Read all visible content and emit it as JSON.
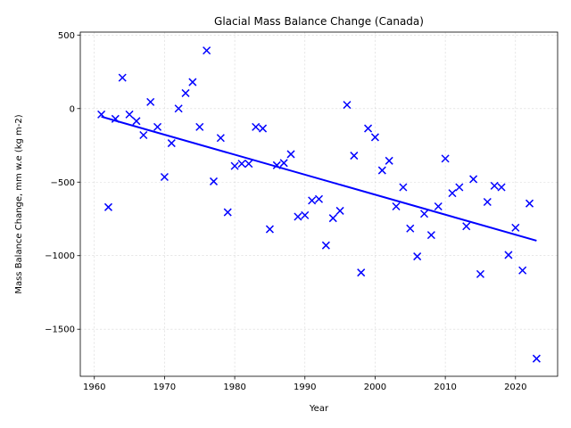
{
  "chart_data": {
    "type": "scatter",
    "title": "Glacial Mass Balance Change (Canada)",
    "xlabel": "Year",
    "ylabel": "Mass Balance Change, mm w.e (kg m-2)",
    "xlim": [
      1958,
      2026
    ],
    "ylim": [
      -1820,
      520
    ],
    "xticks": [
      1960,
      1970,
      1980,
      1990,
      2000,
      2010,
      2020
    ],
    "yticks": [
      -1500,
      -1000,
      -500,
      0,
      500
    ],
    "xtick_labels": [
      "1960",
      "1970",
      "1980",
      "1990",
      "2000",
      "2010",
      "2020"
    ],
    "ytick_labels": [
      "−1500",
      "−1000",
      "−500",
      "0",
      "500"
    ],
    "grid": true,
    "marker": "x",
    "series": [
      {
        "color": "#0000ff",
        "x": [
          1961,
          1962,
          1963,
          1964,
          1965,
          1966,
          1967,
          1968,
          1969,
          1970,
          1971,
          1972,
          1973,
          1974,
          1975,
          1976,
          1977,
          1978,
          1979,
          1980,
          1981,
          1982,
          1983,
          1984,
          1985,
          1986,
          1987,
          1988,
          1989,
          1990,
          1991,
          1992,
          1993,
          1994,
          1995,
          1996,
          1997,
          1998,
          1999,
          2000,
          2001,
          2002,
          2003,
          2004,
          2005,
          2006,
          2007,
          2008,
          2009,
          2010,
          2011,
          2012,
          2013,
          2014,
          2015,
          2016,
          2017,
          2018,
          2019,
          2020,
          2021,
          2022,
          2023
        ],
        "y": [
          -40,
          -670,
          -70,
          210,
          -40,
          -85,
          -180,
          45,
          -125,
          -465,
          -235,
          0,
          105,
          180,
          -125,
          395,
          -495,
          -200,
          -705,
          -390,
          -375,
          -375,
          -125,
          -135,
          -820,
          -385,
          -370,
          -310,
          -735,
          -725,
          -625,
          -615,
          -930,
          -745,
          -695,
          25,
          -320,
          -1115,
          -135,
          -195,
          -420,
          -355,
          -665,
          -535,
          -815,
          -1005,
          -715,
          -860,
          -665,
          -340,
          -575,
          -535,
          -800,
          -480,
          -1125,
          -635,
          -525,
          -535,
          -995,
          -810,
          -1100,
          -645,
          -1700
        ]
      }
    ],
    "trendline": {
      "color": "#0000ff",
      "x": [
        1961,
        2023
      ],
      "y": [
        -55,
        -898
      ]
    }
  }
}
